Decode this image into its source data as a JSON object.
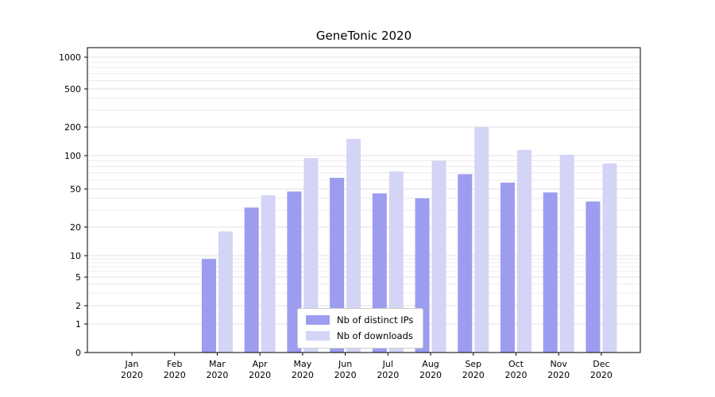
{
  "chart_data": {
    "type": "bar",
    "title": "GeneTonic 2020",
    "categories": [
      "Jan",
      "Feb",
      "Mar",
      "Apr",
      "May",
      "Jun",
      "Jul",
      "Aug",
      "Sep",
      "Oct",
      "Nov",
      "Dec"
    ],
    "year": "2020",
    "series": [
      {
        "name": "Nb of distinct IPs",
        "color": "#9c9cf0",
        "values": [
          0,
          0,
          9,
          32,
          47,
          63,
          45,
          40,
          68,
          57,
          46,
          37
        ]
      },
      {
        "name": "Nb of downloads",
        "color": "#d4d4f7",
        "values": [
          0,
          0,
          18,
          43,
          95,
          150,
          72,
          90,
          200,
          115,
          102,
          85
        ]
      }
    ],
    "y_ticks": [
      0,
      1,
      2,
      5,
      10,
      20,
      50,
      100,
      200,
      500,
      1000
    ],
    "scale": "symlog",
    "ylim": [
      0,
      1200
    ],
    "xlabel": "",
    "ylabel": "",
    "grid": true,
    "legend_position": "lower center"
  }
}
